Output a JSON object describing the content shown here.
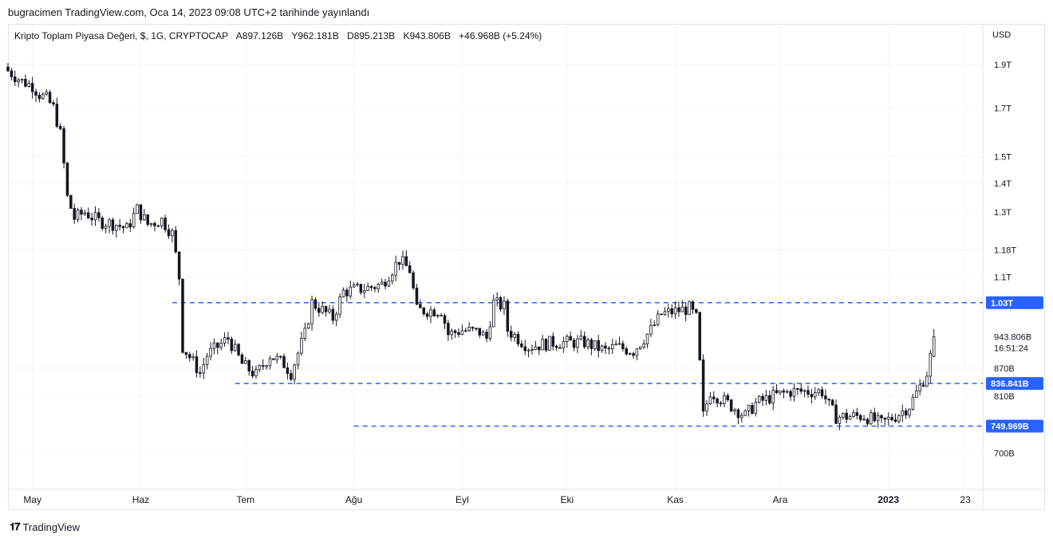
{
  "header": {
    "published": "bugracimen TradingView.com, Oca 14, 2023 09:08 UTC+2 tarihinde yayınlandı"
  },
  "legend": {
    "symbol": "Kripto Toplam Piyasa Değeri, $, 1G, CRYPTOCAP",
    "open": "A897.126B",
    "high": "Y962.181B",
    "low": "D895.213B",
    "close": "K943.806B",
    "change": "+46.968B (+5.24%)"
  },
  "footer": {
    "brand": "TradingView",
    "logo_icon": "tradingview-logo-icon"
  },
  "colors": {
    "up": "#ffffff",
    "down": "#131722",
    "level_line": "#2962ff",
    "level_label_bg": "#2962ff",
    "grid": "#f0f3fa"
  },
  "chart_data": {
    "type": "candlestick",
    "title": "Kripto Toplam Piyasa Değeri, $, 1G, CRYPTOCAP",
    "currency_label": "USD",
    "y_scale": "log",
    "ylim": [
      640,
      2000
    ],
    "y_ticks": [
      {
        "label": "1.9T",
        "value": 1900
      },
      {
        "label": "1.7T",
        "value": 1700
      },
      {
        "label": "1.5T",
        "value": 1500
      },
      {
        "label": "1.4T",
        "value": 1400
      },
      {
        "label": "1.3T",
        "value": 1300
      },
      {
        "label": "1.18T",
        "value": 1180
      },
      {
        "label": "1.1T",
        "value": 1100
      },
      {
        "label": "870B",
        "value": 870
      },
      {
        "label": "810B",
        "value": 810
      },
      {
        "label": "700B",
        "value": 700
      }
    ],
    "x_ticks": [
      {
        "label": "May",
        "date": "2022-05-01",
        "bold": false
      },
      {
        "label": "Haz",
        "date": "2022-06-01",
        "bold": false
      },
      {
        "label": "Tem",
        "date": "2022-07-01",
        "bold": false
      },
      {
        "label": "Ağu",
        "date": "2022-08-01",
        "bold": false
      },
      {
        "label": "Eyl",
        "date": "2022-09-01",
        "bold": false
      },
      {
        "label": "Eki",
        "date": "2022-10-01",
        "bold": false
      },
      {
        "label": "Kas",
        "date": "2022-11-01",
        "bold": false
      },
      {
        "label": "Ara",
        "date": "2022-12-01",
        "bold": false
      },
      {
        "label": "2023",
        "date": "2023-01-01",
        "bold": true
      },
      {
        "label": "23",
        "date": "2023-01-23",
        "bold": false
      }
    ],
    "x_range": [
      "2022-04-24",
      "2023-01-28"
    ],
    "levels": [
      {
        "label": "1.03T",
        "value": 1030,
        "from": "2022-06-10"
      },
      {
        "label": "836.841B",
        "value": 836.841,
        "from": "2022-06-28"
      },
      {
        "label": "749.969B",
        "value": 749.969,
        "from": "2022-08-01"
      }
    ],
    "last_price": {
      "label": "943.806B",
      "value": 943.806,
      "countdown": "16:51:24"
    },
    "anchors": [
      {
        "date": "2022-04-24",
        "close": 1870
      },
      {
        "date": "2022-04-28",
        "close": 1820
      },
      {
        "date": "2022-05-01",
        "close": 1800
      },
      {
        "date": "2022-05-03",
        "close": 1760
      },
      {
        "date": "2022-05-05",
        "close": 1740
      },
      {
        "date": "2022-05-07",
        "close": 1700
      },
      {
        "date": "2022-05-09",
        "close": 1590
      },
      {
        "date": "2022-05-11",
        "close": 1350
      },
      {
        "date": "2022-05-13",
        "close": 1280
      },
      {
        "date": "2022-05-16",
        "close": 1300
      },
      {
        "date": "2022-05-20",
        "close": 1270
      },
      {
        "date": "2022-05-25",
        "close": 1260
      },
      {
        "date": "2022-05-28",
        "close": 1245
      },
      {
        "date": "2022-05-31",
        "close": 1310
      },
      {
        "date": "2022-06-03",
        "close": 1260
      },
      {
        "date": "2022-06-07",
        "close": 1275
      },
      {
        "date": "2022-06-10",
        "close": 1230
      },
      {
        "date": "2022-06-12",
        "close": 1100
      },
      {
        "date": "2022-06-13",
        "close": 920
      },
      {
        "date": "2022-06-18",
        "close": 860
      },
      {
        "date": "2022-06-20",
        "close": 900
      },
      {
        "date": "2022-06-26",
        "close": 940
      },
      {
        "date": "2022-06-30",
        "close": 880
      },
      {
        "date": "2022-07-04",
        "close": 855
      },
      {
        "date": "2022-07-08",
        "close": 900
      },
      {
        "date": "2022-07-12",
        "close": 880
      },
      {
        "date": "2022-07-14",
        "close": 860
      },
      {
        "date": "2022-07-18",
        "close": 950
      },
      {
        "date": "2022-07-20",
        "close": 1030
      },
      {
        "date": "2022-07-26",
        "close": 990
      },
      {
        "date": "2022-07-29",
        "close": 1060
      },
      {
        "date": "2022-08-05",
        "close": 1070
      },
      {
        "date": "2022-08-09",
        "close": 1080
      },
      {
        "date": "2022-08-14",
        "close": 1150
      },
      {
        "date": "2022-08-17",
        "close": 1120
      },
      {
        "date": "2022-08-19",
        "close": 1010
      },
      {
        "date": "2022-08-26",
        "close": 1010
      },
      {
        "date": "2022-08-28",
        "close": 950
      },
      {
        "date": "2022-09-01",
        "close": 960
      },
      {
        "date": "2022-09-06",
        "close": 955
      },
      {
        "date": "2022-09-08",
        "close": 940
      },
      {
        "date": "2022-09-10",
        "close": 1030
      },
      {
        "date": "2022-09-13",
        "close": 1020
      },
      {
        "date": "2022-09-14",
        "close": 960
      },
      {
        "date": "2022-09-20",
        "close": 920
      },
      {
        "date": "2022-09-27",
        "close": 930
      },
      {
        "date": "2022-10-06",
        "close": 930
      },
      {
        "date": "2022-10-12",
        "close": 910
      },
      {
        "date": "2022-10-15",
        "close": 920
      },
      {
        "date": "2022-10-20",
        "close": 910
      },
      {
        "date": "2022-10-25",
        "close": 960
      },
      {
        "date": "2022-10-28",
        "close": 1000
      },
      {
        "date": "2022-11-02",
        "close": 1010
      },
      {
        "date": "2022-11-05",
        "close": 1015
      },
      {
        "date": "2022-11-07",
        "close": 990
      },
      {
        "date": "2022-11-08",
        "close": 880
      },
      {
        "date": "2022-11-09",
        "close": 770
      },
      {
        "date": "2022-11-11",
        "close": 820
      },
      {
        "date": "2022-11-15",
        "close": 800
      },
      {
        "date": "2022-11-21",
        "close": 770
      },
      {
        "date": "2022-11-24",
        "close": 795
      },
      {
        "date": "2022-11-29",
        "close": 810
      },
      {
        "date": "2022-12-04",
        "close": 820
      },
      {
        "date": "2022-12-13",
        "close": 820
      },
      {
        "date": "2022-12-15",
        "close": 790
      },
      {
        "date": "2022-12-17",
        "close": 768
      },
      {
        "date": "2022-12-25",
        "close": 770
      },
      {
        "date": "2022-12-30",
        "close": 755
      },
      {
        "date": "2023-01-03",
        "close": 770
      },
      {
        "date": "2023-01-07",
        "close": 790
      },
      {
        "date": "2023-01-10",
        "close": 830
      },
      {
        "date": "2023-01-12",
        "close": 860
      },
      {
        "date": "2023-01-13",
        "close": 897.126
      },
      {
        "date": "2023-01-14",
        "open": 897.126,
        "high": 962.181,
        "low": 895.213,
        "close": 943.806
      }
    ]
  }
}
